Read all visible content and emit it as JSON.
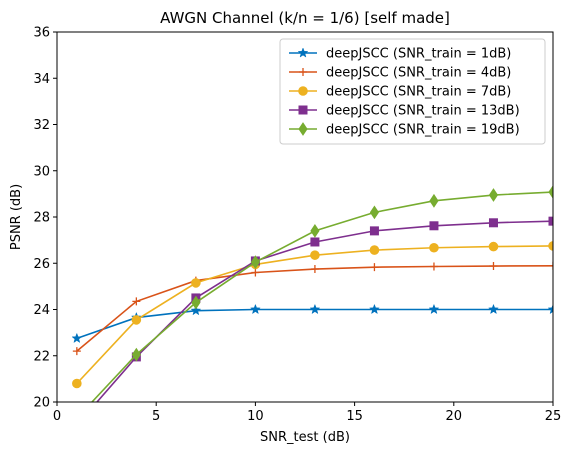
{
  "chart_data": {
    "type": "line",
    "title": "AWGN Channel (k/n = 1/6) [self made]",
    "xlabel": "SNR_test (dB)",
    "ylabel": "PSNR (dB)",
    "xlim": [
      0,
      25
    ],
    "ylim": [
      20,
      36
    ],
    "xticks": [
      0,
      5,
      10,
      15,
      20,
      25
    ],
    "yticks": [
      20,
      22,
      24,
      26,
      28,
      30,
      32,
      34,
      36
    ],
    "grid": false,
    "legend_position": "top-right",
    "x": [
      1,
      4,
      7,
      10,
      13,
      16,
      19,
      22,
      25
    ],
    "series": [
      {
        "name": "deepJSCC (SNR_train = 1dB)",
        "color": "#0072BD",
        "marker": "star",
        "values": [
          22.75,
          23.65,
          23.95,
          24.0,
          24.0,
          24.0,
          24.0,
          24.0,
          24.0
        ]
      },
      {
        "name": "deepJSCC (SNR_train = 4dB)",
        "color": "#D95319",
        "marker": "plus",
        "values": [
          22.2,
          24.35,
          25.25,
          25.6,
          25.75,
          25.83,
          25.86,
          25.88,
          25.89
        ]
      },
      {
        "name": "deepJSCC (SNR_train = 7dB)",
        "color": "#EDB120",
        "marker": "circle",
        "values": [
          20.8,
          23.55,
          25.15,
          25.95,
          26.35,
          26.57,
          26.67,
          26.72,
          26.75
        ]
      },
      {
        "name": "deepJSCC (SNR_train = 13dB)",
        "color": "#7E2F8E",
        "marker": "square",
        "values": [
          19.0,
          21.95,
          24.5,
          26.1,
          26.92,
          27.4,
          27.62,
          27.75,
          27.82
        ]
      },
      {
        "name": "deepJSCC (SNR_train = 19dB)",
        "color": "#77AC30",
        "marker": "diamond",
        "values": [
          19.3,
          22.05,
          24.3,
          26.05,
          27.4,
          28.2,
          28.7,
          28.95,
          29.08
        ]
      }
    ]
  }
}
